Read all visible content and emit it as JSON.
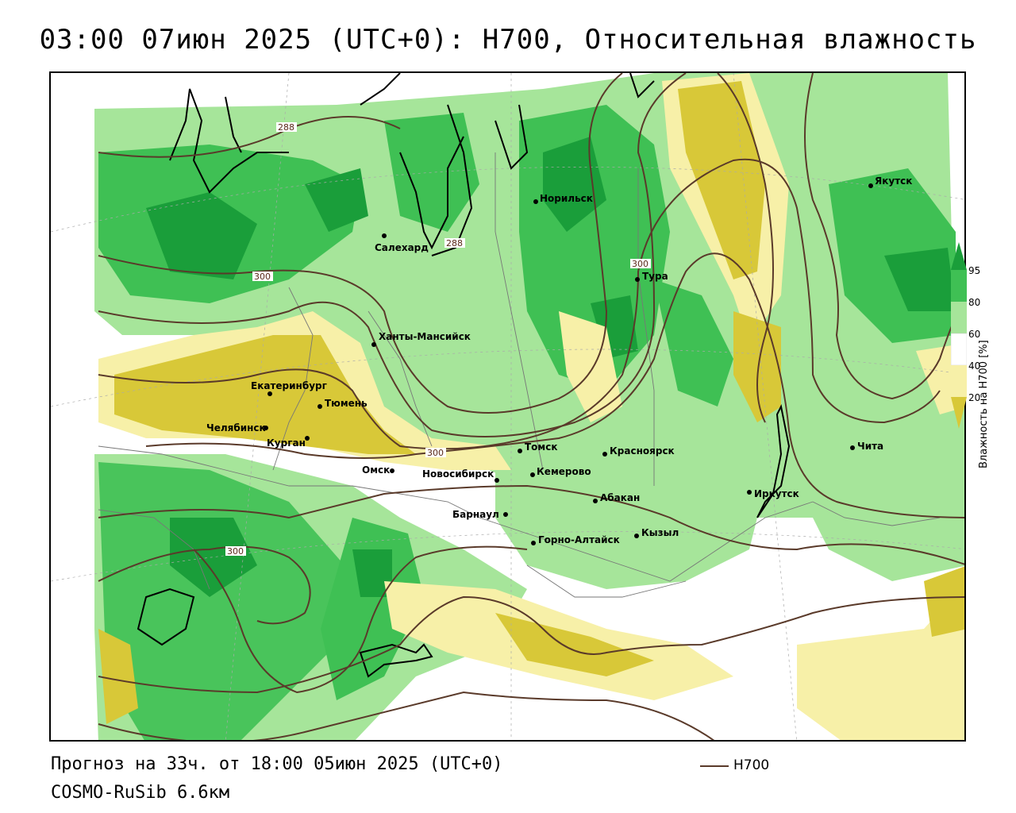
{
  "header": {
    "title": "03:00 07июн 2025 (UTC+0): H700, Относительная влажность"
  },
  "footer": {
    "forecast": "Прогноз на 33ч. от 18:00 05июн 2025 (UTC+0)",
    "model": "COSMO-RuSib 6.6км",
    "line_legend": "H700"
  },
  "legend": {
    "title": "Влажность на H700 [%]",
    "ticks": [
      "95",
      "80",
      "60",
      "40",
      "20"
    ],
    "colors": {
      "c95": "#1a9e3a",
      "c80": "#3fc054",
      "c60": "#a6e59a",
      "c40": "#ffffff",
      "c20": "#f7f0a8",
      "c0": "#d8c838"
    }
  },
  "contour_color": "#5a3a2a",
  "contour_labels": [
    "288",
    "288",
    "300",
    "300",
    "300",
    "300"
  ],
  "cities": [
    {
      "name": "Салехард"
    },
    {
      "name": "Норильск"
    },
    {
      "name": "Тура"
    },
    {
      "name": "Якутск"
    },
    {
      "name": "Ханты-Мансийск"
    },
    {
      "name": "Екатеринбург"
    },
    {
      "name": "Тюмень"
    },
    {
      "name": "Челябинск"
    },
    {
      "name": "Курган"
    },
    {
      "name": "Омск"
    },
    {
      "name": "Новосибирск"
    },
    {
      "name": "Томск"
    },
    {
      "name": "Кемерово"
    },
    {
      "name": "Красноярск"
    },
    {
      "name": "Абакан"
    },
    {
      "name": "Барнаул"
    },
    {
      "name": "Горно-Алтайск"
    },
    {
      "name": "Кызыл"
    },
    {
      "name": "Иркутск"
    },
    {
      "name": "Чита"
    }
  ]
}
